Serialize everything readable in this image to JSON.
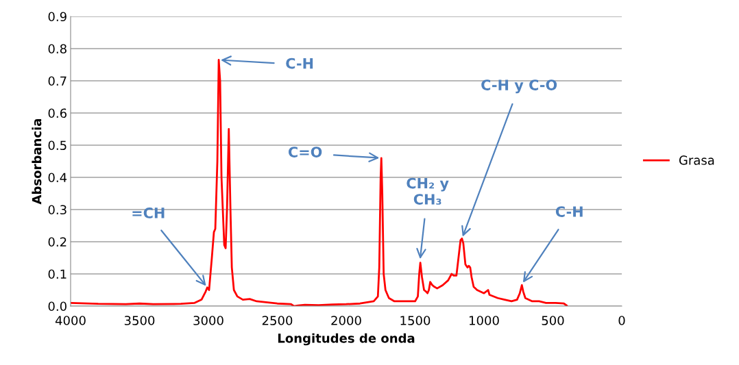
{
  "chart_data": {
    "type": "line",
    "xlabel": "Longitudes de onda",
    "ylabel": "Absorbancia",
    "xlim": [
      4000,
      0
    ],
    "xticks": [
      4000,
      3500,
      3000,
      2500,
      2000,
      1500,
      1000,
      500,
      0
    ],
    "ylim": [
      0,
      0.9
    ],
    "yticks": [
      {
        "value": 0,
        "label": "0.0"
      },
      0.1,
      0.2,
      0.3,
      0.4,
      0.5,
      0.6,
      0.7,
      0.8,
      0.9
    ],
    "grid": "y",
    "legend": "right",
    "marker": "none",
    "line_style": "solid",
    "series": [
      {
        "name": "Grasa",
        "color": "#ff0000",
        "x": [
          4000,
          3800,
          3600,
          3500,
          3400,
          3200,
          3100,
          3050,
          3020,
          3008,
          2995,
          2975,
          2960,
          2950,
          2935,
          2925,
          2915,
          2905,
          2885,
          2875,
          2865,
          2852,
          2840,
          2830,
          2815,
          2790,
          2750,
          2700,
          2650,
          2500,
          2400,
          2380,
          2350,
          2300,
          2200,
          2100,
          2000,
          1900,
          1800,
          1770,
          1760,
          1750,
          1745,
          1738,
          1728,
          1715,
          1690,
          1650,
          1500,
          1480,
          1470,
          1462,
          1450,
          1435,
          1420,
          1410,
          1400,
          1390,
          1375,
          1360,
          1340,
          1300,
          1260,
          1235,
          1220,
          1200,
          1185,
          1170,
          1160,
          1150,
          1135,
          1120,
          1110,
          1100,
          1090,
          1075,
          1050,
          1000,
          970,
          960,
          900,
          850,
          800,
          760,
          740,
          725,
          715,
          700,
          650,
          600,
          550,
          480,
          420,
          400
        ],
        "values": [
          0.01,
          0.007,
          0.006,
          0.008,
          0.006,
          0.007,
          0.01,
          0.02,
          0.045,
          0.058,
          0.05,
          0.15,
          0.23,
          0.24,
          0.45,
          0.765,
          0.7,
          0.4,
          0.19,
          0.18,
          0.3,
          0.55,
          0.3,
          0.12,
          0.05,
          0.03,
          0.02,
          0.022,
          0.015,
          0.008,
          0.006,
          0.0,
          0.002,
          0.004,
          0.003,
          0.005,
          0.006,
          0.008,
          0.015,
          0.03,
          0.12,
          0.4,
          0.46,
          0.35,
          0.1,
          0.05,
          0.025,
          0.015,
          0.015,
          0.03,
          0.1,
          0.135,
          0.09,
          0.05,
          0.045,
          0.04,
          0.05,
          0.075,
          0.065,
          0.06,
          0.055,
          0.065,
          0.08,
          0.1,
          0.095,
          0.095,
          0.15,
          0.205,
          0.21,
          0.195,
          0.13,
          0.12,
          0.125,
          0.12,
          0.09,
          0.06,
          0.05,
          0.04,
          0.05,
          0.035,
          0.025,
          0.02,
          0.015,
          0.02,
          0.04,
          0.065,
          0.045,
          0.025,
          0.015,
          0.015,
          0.01,
          0.01,
          0.008,
          0.002
        ]
      }
    ],
    "annotations": [
      {
        "text": "=CH",
        "x": 3008,
        "y": 0.058
      },
      {
        "text": "C-H",
        "x": 2925,
        "y": 0.765
      },
      {
        "text": "C=O",
        "x": 1745,
        "y": 0.46
      },
      {
        "text": "CH₂ y\nCH₃",
        "x": 1465,
        "y": 0.14
      },
      {
        "text": "C-H y C-O",
        "x": 1160,
        "y": 0.21
      },
      {
        "text": "C-H",
        "x": 725,
        "y": 0.068
      }
    ]
  }
}
